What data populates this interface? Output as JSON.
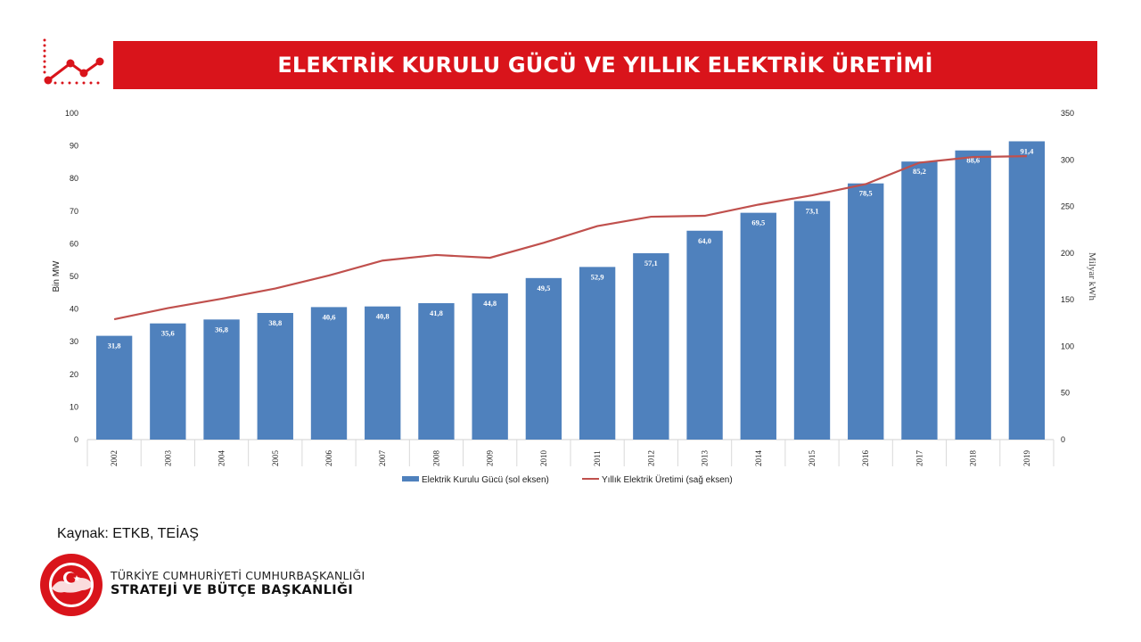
{
  "header": {
    "title": "ELEKTRİK KURULU GÜCÜ VE YILLIK ELEKTRİK ÜRETİMİ"
  },
  "footer": {
    "source": "Kaynak: ETKB, TEİAŞ",
    "org_line1": "TÜRKİYE CUMHURİYETİ CUMHURBAŞKANLIĞI",
    "org_line2": "STRATEJİ VE BÜTÇE BAŞKANLIĞI",
    "seal_text": "T.C. CUMHURBAŞKANLIĞI STRATEJİ VE BÜTÇE BAŞKANLIĞI"
  },
  "colors": {
    "title_bar": "#d9141b",
    "bars": "#4f81bd",
    "line": "#c0504d"
  },
  "chart_data": {
    "type": "bar",
    "categories": [
      "2002",
      "2003",
      "2004",
      "2005",
      "2006",
      "2007",
      "2008",
      "2009",
      "2010",
      "2011",
      "2012",
      "2013",
      "2014",
      "2015",
      "2016",
      "2017",
      "2018",
      "2019"
    ],
    "series": [
      {
        "name": "Elektrik Kurulu Gücü (sol eksen)",
        "type": "bar",
        "axis": "left",
        "values": [
          31.8,
          35.6,
          36.8,
          38.8,
          40.6,
          40.8,
          41.8,
          44.8,
          49.5,
          52.9,
          57.1,
          64.0,
          69.5,
          73.1,
          78.5,
          85.2,
          88.6,
          91.4
        ],
        "labels": [
          "31,8",
          "35,6",
          "36,8",
          "38,8",
          "40,6",
          "40,8",
          "41,8",
          "44,8",
          "49,5",
          "52,9",
          "57,1",
          "64,0",
          "69,5",
          "73,1",
          "78,5",
          "85,2",
          "88,6",
          "91,4"
        ]
      },
      {
        "name": "Yıllık Elektrik Üretimi (sağ eksen)",
        "type": "line",
        "axis": "right",
        "values": [
          129,
          141,
          151,
          162,
          176,
          192,
          198,
          195,
          211,
          229,
          239,
          240,
          252,
          262,
          274,
          297,
          303,
          304
        ]
      }
    ],
    "ylabel": "Bin MW",
    "ylabel_right": "Milyar kWh",
    "ylim": [
      0,
      100
    ],
    "ylim_right": [
      0,
      350
    ],
    "yticks": [
      0,
      10,
      20,
      30,
      40,
      50,
      60,
      70,
      80,
      90,
      100
    ],
    "yticks_right": [
      0,
      50,
      100,
      150,
      200,
      250,
      300,
      350
    ],
    "grid": false,
    "legend_position": "bottom"
  }
}
